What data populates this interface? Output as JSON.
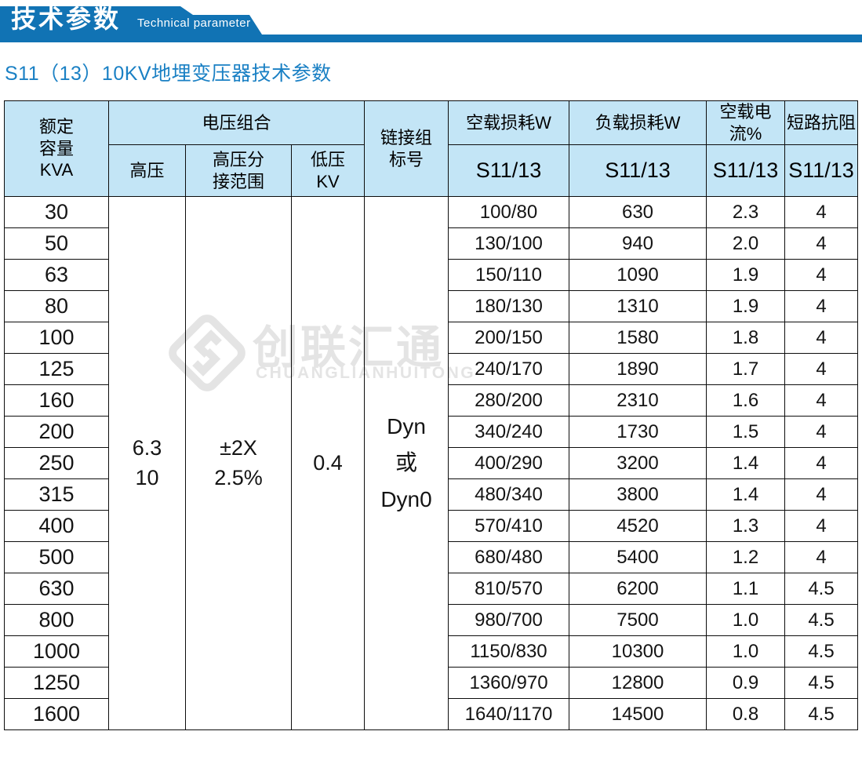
{
  "banner": {
    "title": "技术参数",
    "subtitle": "Technical parameter",
    "bg_color": "#1173b4"
  },
  "page_title": "S11（13）10KV地埋变压器技术参数",
  "watermark": {
    "logo_icon": "diamond-logo",
    "name": "创联汇通",
    "latin": "CHUANGLIANHUITONG",
    "color": "#e4e4e4"
  },
  "table": {
    "header": {
      "capacity": "额定\n容量\nKVA",
      "voltage_group": "电压组合",
      "hv": "高压",
      "hv_tap": "高压分\n接范围",
      "lv": "低压\nKV",
      "connection": "链接组\n标号",
      "no_load_loss": "空载损耗W",
      "load_loss": "负载损耗W",
      "no_load_current": "空载电流%",
      "impedance": "短路抗阻",
      "model": "S11/13"
    },
    "merged": {
      "hv": "6.3\n10",
      "hv_tap": "±2X\n2.5%",
      "lv": "0.4",
      "connection": "Dyn\n或\nDyn0"
    },
    "rows": [
      {
        "kva": "30",
        "no_load_loss": "100/80",
        "load_loss": "630",
        "no_load_current": "2.3",
        "impedance": "4"
      },
      {
        "kva": "50",
        "no_load_loss": "130/100",
        "load_loss": "940",
        "no_load_current": "2.0",
        "impedance": "4"
      },
      {
        "kva": "63",
        "no_load_loss": "150/110",
        "load_loss": "1090",
        "no_load_current": "1.9",
        "impedance": "4"
      },
      {
        "kva": "80",
        "no_load_loss": "180/130",
        "load_loss": "1310",
        "no_load_current": "1.9",
        "impedance": "4"
      },
      {
        "kva": "100",
        "no_load_loss": "200/150",
        "load_loss": "1580",
        "no_load_current": "1.8",
        "impedance": "4"
      },
      {
        "kva": "125",
        "no_load_loss": "240/170",
        "load_loss": "1890",
        "no_load_current": "1.7",
        "impedance": "4"
      },
      {
        "kva": "160",
        "no_load_loss": "280/200",
        "load_loss": "2310",
        "no_load_current": "1.6",
        "impedance": "4"
      },
      {
        "kva": "200",
        "no_load_loss": "340/240",
        "load_loss": "1730",
        "no_load_current": "1.5",
        "impedance": "4"
      },
      {
        "kva": "250",
        "no_load_loss": "400/290",
        "load_loss": "3200",
        "no_load_current": "1.4",
        "impedance": "4"
      },
      {
        "kva": "315",
        "no_load_loss": "480/340",
        "load_loss": "3800",
        "no_load_current": "1.4",
        "impedance": "4"
      },
      {
        "kva": "400",
        "no_load_loss": "570/410",
        "load_loss": "4520",
        "no_load_current": "1.3",
        "impedance": "4"
      },
      {
        "kva": "500",
        "no_load_loss": "680/480",
        "load_loss": "5400",
        "no_load_current": "1.2",
        "impedance": "4"
      },
      {
        "kva": "630",
        "no_load_loss": "810/570",
        "load_loss": "6200",
        "no_load_current": "1.1",
        "impedance": "4.5"
      },
      {
        "kva": "800",
        "no_load_loss": "980/700",
        "load_loss": "7500",
        "no_load_current": "1.0",
        "impedance": "4.5"
      },
      {
        "kva": "1000",
        "no_load_loss": "1150/830",
        "load_loss": "10300",
        "no_load_current": "1.0",
        "impedance": "4.5"
      },
      {
        "kva": "1250",
        "no_load_loss": "1360/970",
        "load_loss": "12800",
        "no_load_current": "0.9",
        "impedance": "4.5"
      },
      {
        "kva": "1600",
        "no_load_loss": "1640/1170",
        "load_loss": "14500",
        "no_load_current": "0.8",
        "impedance": "4.5"
      }
    ]
  },
  "colors": {
    "banner_blue": "#1173b4",
    "title_blue": "#1a80c4",
    "header_bg": "#c3e5f6",
    "border": "#0d0d0d",
    "watermark_gray": "#e4e4e4"
  }
}
